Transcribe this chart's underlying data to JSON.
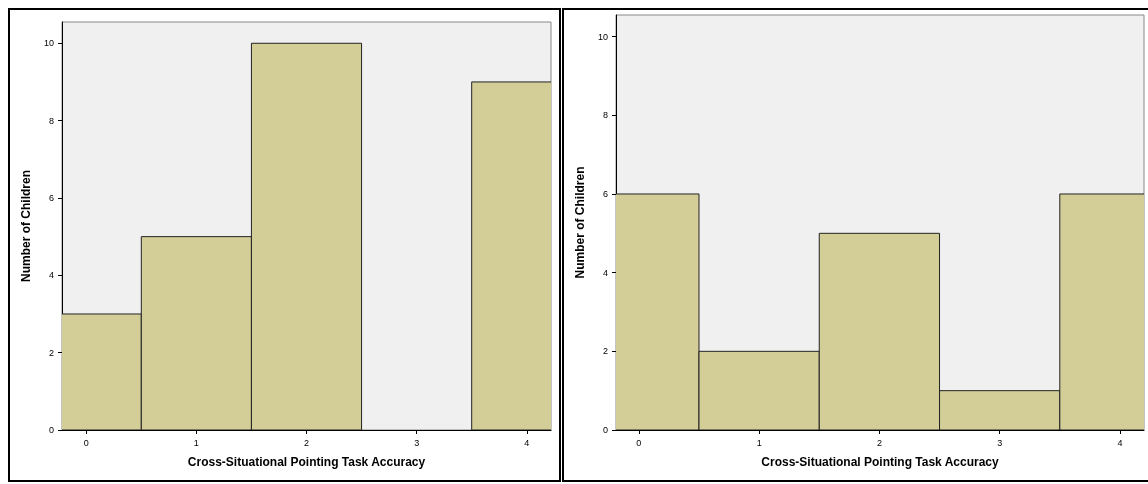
{
  "chart_data": [
    {
      "type": "histogram",
      "xlabel": "Cross-Situational Pointing Task Accuracy",
      "ylabel": "Number of Children",
      "bins": [
        -0.5,
        0.5,
        1.5,
        2.5,
        3.5,
        4.5
      ],
      "values": [
        3,
        5,
        10,
        0,
        9
      ],
      "color": "#d3ce98",
      "xlim": [
        -0.22,
        4.22
      ],
      "ylim": [
        0,
        10.55
      ],
      "xticks": [
        0,
        1,
        2,
        3,
        4
      ],
      "yticks": [
        0,
        2,
        4,
        6,
        8,
        10
      ]
    },
    {
      "type": "histogram",
      "xlabel": "Cross-Situational Pointing Task Accuracy",
      "ylabel": "Number of Children",
      "bins": [
        -0.5,
        0.5,
        1.5,
        2.5,
        3.5,
        4.5
      ],
      "values": [
        6,
        2,
        5,
        1,
        6
      ],
      "color": "#d3ce98",
      "xlim": [
        -0.19,
        4.2
      ],
      "ylim": [
        0,
        10.55
      ],
      "xticks": [
        0,
        1,
        2,
        3,
        4
      ],
      "yticks": [
        0,
        2,
        4,
        6,
        8,
        10
      ]
    }
  ]
}
